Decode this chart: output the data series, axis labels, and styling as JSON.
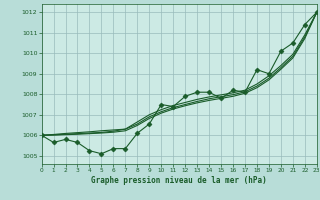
{
  "title": "",
  "xlabel": "Graphe pression niveau de la mer (hPa)",
  "ylabel": "",
  "bg_color": "#b8ddd8",
  "plot_bg_color": "#cceae4",
  "grid_color": "#99bbbb",
  "line_color": "#1a5c2a",
  "x": [
    0,
    1,
    2,
    3,
    4,
    5,
    6,
    7,
    8,
    9,
    10,
    11,
    12,
    13,
    14,
    15,
    16,
    17,
    18,
    19,
    20,
    21,
    22,
    23
  ],
  "y_main": [
    1006.0,
    1005.65,
    1005.8,
    1005.65,
    1005.25,
    1005.1,
    1005.35,
    1005.35,
    1006.1,
    1006.55,
    1007.5,
    1007.4,
    1007.9,
    1008.1,
    1008.1,
    1007.8,
    1008.2,
    1008.1,
    1009.2,
    1009.0,
    1010.1,
    1010.5,
    1011.4,
    1012.0
  ],
  "y_linear": [
    1006.0,
    1006.04,
    1006.09,
    1006.13,
    1006.17,
    1006.22,
    1006.26,
    1006.3,
    1006.65,
    1007.0,
    1007.25,
    1007.45,
    1007.6,
    1007.75,
    1007.87,
    1007.97,
    1008.07,
    1008.2,
    1008.5,
    1008.9,
    1009.4,
    1009.95,
    1010.9,
    1012.0
  ],
  "y_smooth1": [
    1006.0,
    1006.02,
    1006.05,
    1006.08,
    1006.11,
    1006.14,
    1006.2,
    1006.3,
    1006.55,
    1006.9,
    1007.15,
    1007.35,
    1007.5,
    1007.65,
    1007.78,
    1007.88,
    1007.98,
    1008.12,
    1008.4,
    1008.78,
    1009.3,
    1009.85,
    1010.8,
    1012.0
  ],
  "y_smooth2": [
    1006.0,
    1006.01,
    1006.03,
    1006.05,
    1006.08,
    1006.11,
    1006.15,
    1006.22,
    1006.48,
    1006.82,
    1007.08,
    1007.28,
    1007.44,
    1007.58,
    1007.7,
    1007.8,
    1007.9,
    1008.05,
    1008.32,
    1008.7,
    1009.22,
    1009.77,
    1010.72,
    1012.0
  ],
  "ylim": [
    1004.6,
    1012.4
  ],
  "xlim": [
    0,
    23
  ],
  "yticks": [
    1005,
    1006,
    1007,
    1008,
    1009,
    1010,
    1011,
    1012
  ],
  "xticks": [
    0,
    1,
    2,
    3,
    4,
    5,
    6,
    7,
    8,
    9,
    10,
    11,
    12,
    13,
    14,
    15,
    16,
    17,
    18,
    19,
    20,
    21,
    22,
    23
  ],
  "marker": "D"
}
